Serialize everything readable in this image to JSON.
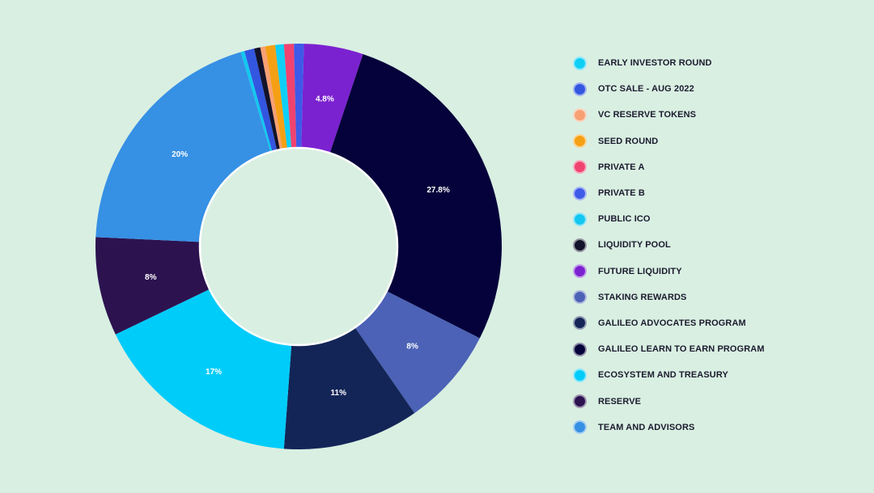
{
  "chart_data": {
    "type": "pie",
    "style": "donut",
    "title": "",
    "legend_position": "right",
    "series": [
      {
        "name": "EARLY INVESTOR ROUND",
        "value": 0.7,
        "color": "#0fcff5",
        "label": ""
      },
      {
        "name": "OTC SALE - AUG 2022",
        "value": 0.8,
        "color": "#3356e0",
        "label": ""
      },
      {
        "name": "VC RESERVE TOKENS",
        "value": 0.4,
        "color": "#f7a073",
        "label": ""
      },
      {
        "name": "SEED ROUND",
        "value": 0.8,
        "color": "#f5a014",
        "label": ""
      },
      {
        "name": "PRIVATE A",
        "value": 0.8,
        "color": "#f0436f",
        "label": ""
      },
      {
        "name": "PRIVATE B",
        "value": 0.8,
        "color": "#3e5ae8",
        "label": ""
      },
      {
        "name": "PUBLIC ICO",
        "value": 0.3,
        "color": "#12c8f0",
        "label": ""
      },
      {
        "name": "LIQUIDITY POOL",
        "value": 0.5,
        "color": "#12122a",
        "label": ""
      },
      {
        "name": "FUTURE LIQUIDITY",
        "value": 4.8,
        "color": "#7b22d0",
        "label": "4.8%"
      },
      {
        "name": "STAKING REWARDS",
        "value": 8,
        "color": "#4c62b6",
        "label": "8%"
      },
      {
        "name": "GALILEO ADVOCATES PROGRAM",
        "value": 11,
        "color": "#132557",
        "label": "11%"
      },
      {
        "name": "GALILEO LEARN TO EARN PROGRAM",
        "value": 27.8,
        "color": "#05013a",
        "label": "27.8%"
      },
      {
        "name": "ECOSYSTEM AND TREASURY",
        "value": 17,
        "color": "#00ccfa",
        "label": "17%"
      },
      {
        "name": "RESERVE",
        "value": 8,
        "color": "#2c1350",
        "label": "8%"
      },
      {
        "name": "TEAM AND ADVISORS",
        "value": 20,
        "color": "#3690e4",
        "label": "20%"
      }
    ],
    "slice_order": [
      "FUTURE LIQUIDITY",
      "GALILEO LEARN TO EARN PROGRAM",
      "STAKING REWARDS",
      "GALILEO ADVOCATES PROGRAM",
      "ECOSYSTEM AND TREASURY",
      "RESERVE",
      "TEAM AND ADVISORS",
      "PUBLIC ICO",
      "OTC SALE - AUG 2022",
      "LIQUIDITY POOL",
      "VC RESERVE TOKENS",
      "SEED ROUND",
      "EARLY INVESTOR ROUND",
      "PRIVATE A",
      "PRIVATE B"
    ]
  }
}
